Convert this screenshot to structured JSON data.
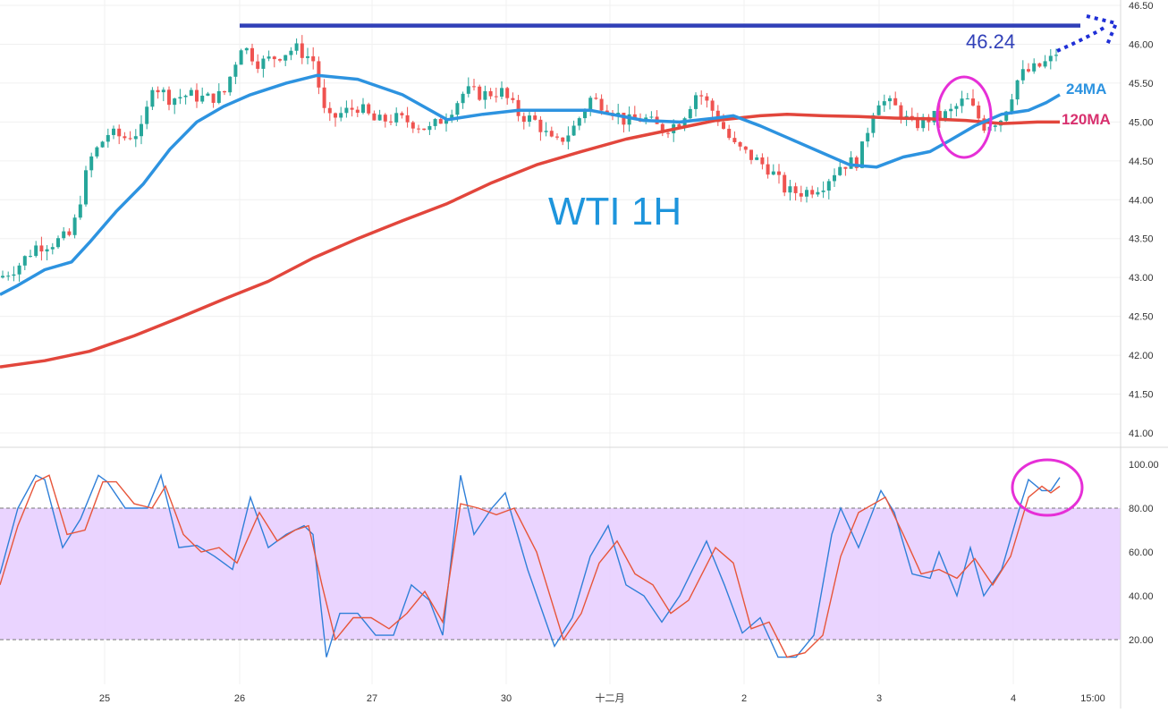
{
  "chart_data": [
    {
      "type": "candlestick",
      "title": "WTI 1H",
      "price_axis": {
        "ticks": [
          "46.50",
          "46.00",
          "45.50",
          "45.00",
          "44.50",
          "44.00",
          "43.50",
          "43.00",
          "42.50",
          "42.00",
          "41.50",
          "41.00"
        ],
        "ylim": [
          40.85,
          46.52
        ]
      },
      "x_labels": [
        "25",
        "26",
        "27",
        "30",
        "十二月",
        "2",
        "3",
        "4",
        "15:00"
      ],
      "resistance": {
        "value": 46.24,
        "label": "46.24"
      },
      "ma_labels": {
        "ma24": "24MA",
        "ma120": "120MA"
      },
      "ma24": [
        [
          0,
          42.78
        ],
        [
          20,
          42.9
        ],
        [
          50,
          43.1
        ],
        [
          80,
          43.2
        ],
        [
          100,
          43.45
        ],
        [
          130,
          43.85
        ],
        [
          160,
          44.2
        ],
        [
          190,
          44.65
        ],
        [
          220,
          45.0
        ],
        [
          250,
          45.2
        ],
        [
          280,
          45.35
        ],
        [
          320,
          45.5
        ],
        [
          355,
          45.6
        ],
        [
          400,
          45.55
        ],
        [
          450,
          45.35
        ],
        [
          500,
          45.03
        ],
        [
          540,
          45.1
        ],
        [
          580,
          45.15
        ],
        [
          620,
          45.15
        ],
        [
          660,
          45.15
        ],
        [
          720,
          45.02
        ],
        [
          760,
          45.0
        ],
        [
          800,
          45.05
        ],
        [
          820,
          45.08
        ],
        [
          850,
          44.95
        ],
        [
          880,
          44.8
        ],
        [
          920,
          44.6
        ],
        [
          950,
          44.45
        ],
        [
          980,
          44.42
        ],
        [
          1010,
          44.55
        ],
        [
          1040,
          44.62
        ],
        [
          1060,
          44.75
        ],
        [
          1090,
          44.95
        ],
        [
          1120,
          45.1
        ],
        [
          1150,
          45.15
        ],
        [
          1170,
          45.25
        ],
        [
          1185,
          45.35
        ]
      ],
      "ma120": [
        [
          0,
          41.85
        ],
        [
          50,
          41.93
        ],
        [
          100,
          42.05
        ],
        [
          150,
          42.25
        ],
        [
          200,
          42.48
        ],
        [
          250,
          42.72
        ],
        [
          300,
          42.95
        ],
        [
          350,
          43.25
        ],
        [
          400,
          43.5
        ],
        [
          450,
          43.73
        ],
        [
          500,
          43.95
        ],
        [
          550,
          44.22
        ],
        [
          600,
          44.45
        ],
        [
          650,
          44.62
        ],
        [
          700,
          44.78
        ],
        [
          750,
          44.9
        ],
        [
          800,
          45.02
        ],
        [
          850,
          45.08
        ],
        [
          880,
          45.1
        ],
        [
          920,
          45.08
        ],
        [
          960,
          45.07
        ],
        [
          1000,
          45.05
        ],
        [
          1040,
          45.04
        ],
        [
          1080,
          45.02
        ],
        [
          1120,
          44.98
        ],
        [
          1160,
          45.0
        ],
        [
          1185,
          45.0
        ]
      ],
      "candles_note": "hourly OHLC approximations"
    },
    {
      "type": "line",
      "title": "",
      "y_ticks": [
        "100.00",
        "80.00",
        "60.00",
        "40.00",
        "20.00"
      ],
      "ylim": [
        8,
        102
      ],
      "band": [
        20,
        80
      ],
      "series": [
        {
          "color": "#2f7fd8",
          "points": [
            [
              0,
              50
            ],
            [
              20,
              80
            ],
            [
              40,
              95
            ],
            [
              50,
              93
            ],
            [
              70,
              62
            ],
            [
              90,
              75
            ],
            [
              110,
              95
            ],
            [
              120,
              92
            ],
            [
              140,
              80
            ],
            [
              165,
              80
            ],
            [
              180,
              95
            ],
            [
              200,
              62
            ],
            [
              220,
              63
            ],
            [
              240,
              58
            ],
            [
              260,
              52
            ],
            [
              280,
              85
            ],
            [
              300,
              62
            ],
            [
              320,
              68
            ],
            [
              340,
              72
            ],
            [
              350,
              68
            ],
            [
              365,
              12
            ],
            [
              380,
              32
            ],
            [
              400,
              32
            ],
            [
              420,
              22
            ],
            [
              440,
              22
            ],
            [
              460,
              45
            ],
            [
              480,
              38
            ],
            [
              495,
              22
            ],
            [
              515,
              95
            ],
            [
              530,
              68
            ],
            [
              550,
              80
            ],
            [
              565,
              87
            ],
            [
              590,
              52
            ],
            [
              620,
              17
            ],
            [
              640,
              30
            ],
            [
              660,
              58
            ],
            [
              680,
              72
            ],
            [
              700,
              45
            ],
            [
              720,
              40
            ],
            [
              740,
              28
            ],
            [
              760,
              40
            ],
            [
              790,
              65
            ],
            [
              810,
              45
            ],
            [
              830,
              23
            ],
            [
              850,
              30
            ],
            [
              870,
              12
            ],
            [
              890,
              12
            ],
            [
              910,
              22
            ],
            [
              930,
              68
            ],
            [
              940,
              80
            ],
            [
              960,
              62
            ],
            [
              985,
              88
            ],
            [
              1000,
              78
            ],
            [
              1020,
              50
            ],
            [
              1040,
              48
            ],
            [
              1050,
              60
            ],
            [
              1070,
              40
            ],
            [
              1085,
              62
            ],
            [
              1100,
              40
            ],
            [
              1120,
              52
            ],
            [
              1140,
              80
            ],
            [
              1150,
              93
            ],
            [
              1165,
              88
            ],
            [
              1175,
              88
            ],
            [
              1185,
              94
            ]
          ]
        },
        {
          "color": "#e7553a",
          "points": [
            [
              0,
              45
            ],
            [
              20,
              72
            ],
            [
              40,
              92
            ],
            [
              55,
              95
            ],
            [
              75,
              68
            ],
            [
              95,
              70
            ],
            [
              115,
              92
            ],
            [
              130,
              92
            ],
            [
              150,
              82
            ],
            [
              170,
              80
            ],
            [
              185,
              90
            ],
            [
              205,
              68
            ],
            [
              225,
              60
            ],
            [
              245,
              62
            ],
            [
              265,
              55
            ],
            [
              290,
              78
            ],
            [
              310,
              65
            ],
            [
              330,
              70
            ],
            [
              345,
              72
            ],
            [
              360,
              45
            ],
            [
              375,
              20
            ],
            [
              395,
              30
            ],
            [
              415,
              30
            ],
            [
              435,
              25
            ],
            [
              455,
              32
            ],
            [
              475,
              42
            ],
            [
              495,
              28
            ],
            [
              515,
              82
            ],
            [
              535,
              80
            ],
            [
              555,
              77
            ],
            [
              575,
              80
            ],
            [
              600,
              60
            ],
            [
              630,
              20
            ],
            [
              650,
              32
            ],
            [
              670,
              55
            ],
            [
              690,
              65
            ],
            [
              710,
              50
            ],
            [
              730,
              45
            ],
            [
              750,
              32
            ],
            [
              770,
              38
            ],
            [
              800,
              62
            ],
            [
              820,
              55
            ],
            [
              840,
              25
            ],
            [
              860,
              28
            ],
            [
              880,
              12
            ],
            [
              900,
              14
            ],
            [
              920,
              22
            ],
            [
              940,
              58
            ],
            [
              960,
              78
            ],
            [
              990,
              85
            ],
            [
              1010,
              68
            ],
            [
              1030,
              50
            ],
            [
              1050,
              52
            ],
            [
              1070,
              48
            ],
            [
              1090,
              57
            ],
            [
              1110,
              45
            ],
            [
              1130,
              58
            ],
            [
              1150,
              85
            ],
            [
              1165,
              90
            ],
            [
              1175,
              87
            ],
            [
              1185,
              90
            ]
          ]
        }
      ]
    }
  ]
}
